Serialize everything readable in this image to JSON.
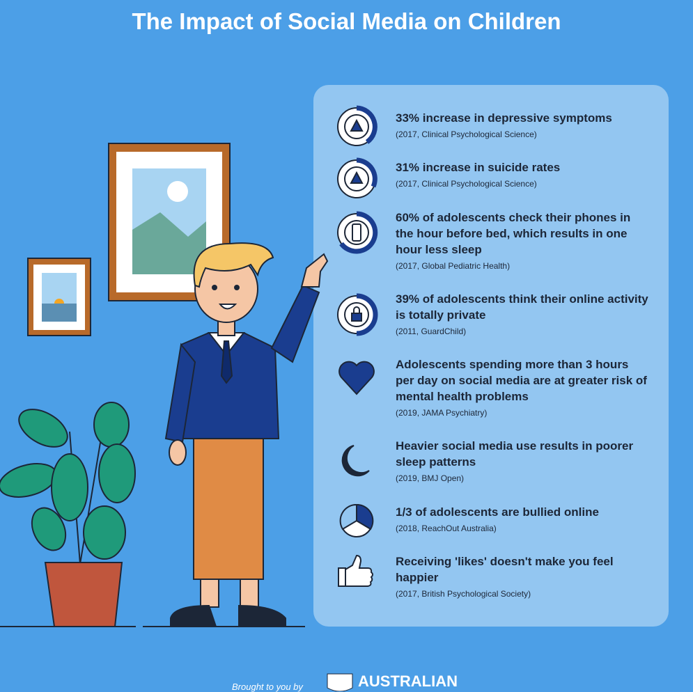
{
  "header": {
    "title": "The Impact of Social Media on Children"
  },
  "items": [
    {
      "text": "33% increase in depressive symptoms",
      "source": "(2017, Clinical Psychological Science)"
    },
    {
      "text": "31% increase in suicide rates",
      "source": "(2017, Clinical Psychological Science)"
    },
    {
      "text": "60% of adolescents check their phones in the hour before bed, which results in one hour less sleep",
      "source": "(2017, Global Pediatric Health)"
    },
    {
      "text": "39% of adolescents think their online activity is totally private",
      "source": "(2011, GuardChild)"
    },
    {
      "text": "Adolescents spending more than 3 hours per day on social media are at greater risk of mental health problems",
      "source": "(2019, JAMA Psychiatry)"
    },
    {
      "text": "Heavier social media use results in poorer sleep patterns",
      "source": "(2019, BMJ Open)"
    },
    {
      "text": "1/3 of adolescents are bullied online",
      "source": "(2018, ReachOut Australia)"
    },
    {
      "text": "Receiving 'likes' doesn't make you feel happier",
      "source": "(2017, British Psychological Society)"
    }
  ],
  "footer": {
    "credit": "Brought to you by",
    "brand": "AUSTRALIAN"
  }
}
